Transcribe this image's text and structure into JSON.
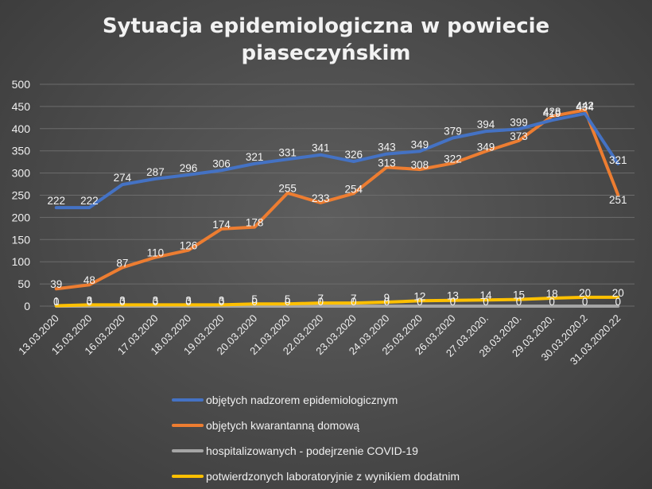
{
  "chart_data": {
    "type": "line",
    "title_lines": [
      "Sytuacja epidemiologiczna w powiecie",
      "piaseczyńskim"
    ],
    "categories": [
      "13.03.2020",
      "15.03.2020",
      "16.03.2020",
      "17.03.2020",
      "18.03.2020",
      "19.03.2020",
      "20.03.2020",
      "21.03.2020",
      "22.03.2020",
      "23.03.2020",
      "24.03.2020",
      "25.03.2020",
      "26.03.2020",
      "27.03.2020.",
      "28.03.2020.",
      "29.03.2020.",
      "30.03.2020.2",
      "31.03.2020.22"
    ],
    "yticks": [
      "0",
      "50",
      "100",
      "150",
      "200",
      "250",
      "300",
      "350",
      "400",
      "450",
      "500"
    ],
    "ylim": [
      0,
      500
    ],
    "grid": true,
    "legend_position": "bottom",
    "series": [
      {
        "name": "objętych nadzorem epidemiologicznym",
        "color": "#4472c4",
        "values": [
          222,
          222,
          274,
          287,
          296,
          306,
          321,
          331,
          341,
          326,
          343,
          349,
          379,
          394,
          399,
          419,
          434,
          321
        ],
        "labels": [
          "222",
          "222",
          "274",
          "287",
          "296",
          "306",
          "321",
          "331",
          "341",
          "326",
          "343",
          "349",
          "379",
          "394",
          "399",
          "419",
          "434",
          "321"
        ]
      },
      {
        "name": "objętych kwarantanną domową",
        "color": "#ed7d31",
        "values": [
          39,
          48,
          87,
          110,
          126,
          174,
          178,
          255,
          233,
          254,
          313,
          308,
          322,
          349,
          373,
          428,
          442,
          251
        ],
        "labels": [
          "39",
          "48",
          "87",
          "110",
          "126",
          "174",
          "178",
          "255",
          "233",
          "254",
          "313",
          "308",
          "322",
          "349",
          "373",
          "428",
          "442",
          "251"
        ]
      },
      {
        "name": "hospitalizowanych - podejrzenie COVID-19",
        "color": "#a5a5a5",
        "values": [
          0,
          0,
          0,
          0,
          0,
          0,
          0,
          0,
          0,
          0,
          0,
          0,
          0,
          0,
          0,
          0,
          0,
          0
        ],
        "labels": [
          "0",
          "0",
          "0",
          "0",
          "0",
          "0",
          "0",
          "0",
          "0",
          "0",
          "0",
          "0",
          "0",
          "0",
          "0",
          "0",
          "0",
          "0"
        ]
      },
      {
        "name": "potwierdzonych laboratoryjnie z wynikiem dodatnim",
        "color": "#ffc000",
        "values": [
          1,
          3,
          3,
          3,
          3,
          3,
          5,
          5,
          7,
          7,
          9,
          12,
          13,
          14,
          15,
          18,
          20,
          20
        ],
        "labels": [
          "1",
          "3",
          "3",
          "3",
          "3",
          "3",
          "5",
          "5",
          "7",
          "7",
          "9",
          "12",
          "13",
          "14",
          "15",
          "18",
          "20",
          "20"
        ]
      }
    ]
  }
}
